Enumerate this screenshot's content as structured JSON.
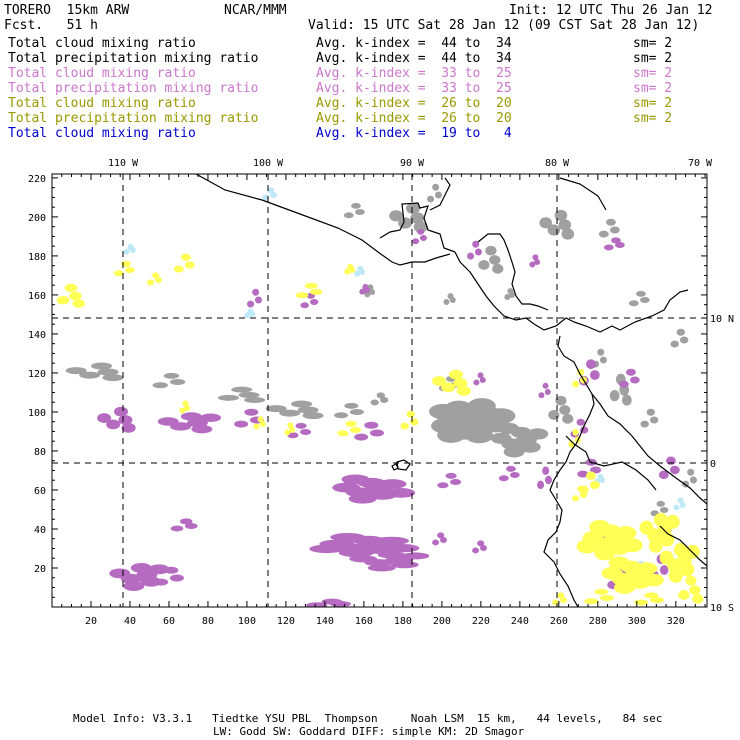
{
  "header": {
    "model": "TORERO  15km ARW",
    "org": "NCAR/MMM",
    "init": "Init: 12 UTC Thu 26 Jan 12",
    "fcst": "Fcst.   51 h",
    "valid": "Valid: 15 UTC Sat 28 Jan 12 (09 CST Sat 28 Jan 12)"
  },
  "legend": [
    {
      "field": "Total cloud mixing ratio",
      "avg": "Avg. k-index =  44 to  34",
      "sm": "sm= 2",
      "color": "#000000"
    },
    {
      "field": "Total precipitation mixing ratio",
      "avg": "Avg. k-index =  44 to  34",
      "sm": "sm= 2",
      "color": "#000000"
    },
    {
      "field": "Total cloud mixing ratio",
      "avg": "Avg. k-index =  33 to  25",
      "sm": "sm= 2",
      "color": "#cc77cc"
    },
    {
      "field": "Total precipitation mixing ratio",
      "avg": "Avg. k-index =  33 to  25",
      "sm": "sm= 2",
      "color": "#cc77cc"
    },
    {
      "field": "Total cloud mixing ratio",
      "avg": "Avg. k-index =  26 to  20",
      "sm": "sm= 2",
      "color": "#999900"
    },
    {
      "field": "Total precipitation mixing ratio",
      "avg": "Avg. k-index =  26 to  20",
      "sm": "sm= 2",
      "color": "#999900"
    },
    {
      "field": "Total cloud mixing ratio",
      "avg": "Avg. k-index =  19 to   4",
      "sm": "",
      "color": "#0000cc"
    }
  ],
  "map": {
    "top_lon_labels": [
      "110 W",
      "100 W",
      "90 W",
      "80 W",
      "70 W"
    ],
    "right_lat_labels": [
      "10 N",
      "0",
      "10 S"
    ],
    "bottom_ticks": [
      "20",
      "40",
      "60",
      "80",
      "100",
      "120",
      "140",
      "160",
      "180",
      "200",
      "220",
      "240",
      "260",
      "280",
      "300",
      "320"
    ],
    "left_ticks": [
      "20",
      "40",
      "60",
      "80",
      "100",
      "120",
      "140",
      "160",
      "180",
      "200",
      "220"
    ],
    "colors": {
      "gray": "#a0a0a0",
      "purple": "#b46bc0",
      "yellow": "#ffff55",
      "cyan": "#bfe8f8"
    }
  },
  "footer": {
    "line1": "Model Info: V3.3.1   Tiedtke YSU PBL  Thompson     Noah LSM  15 km,   44 levels,   84 sec",
    "line2": "LW: Godd SW: Goddard DIFF: simple KM: 2D Smagor"
  }
}
